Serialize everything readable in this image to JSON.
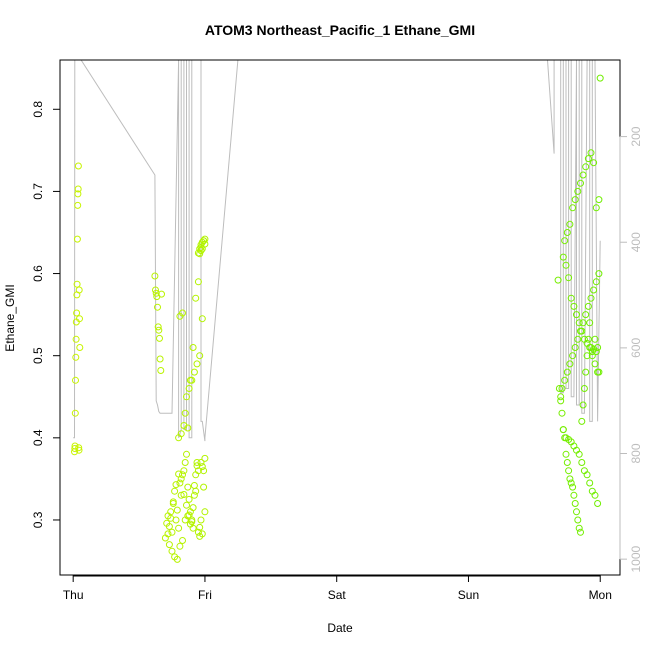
{
  "chart_data": {
    "type": "scatter",
    "title": "ATOM3 Northeast_Pacific_1 Ethane_GMI",
    "xlabel": "Date",
    "ylabel": "Ethane_GMI",
    "x_ticks": [
      "Thu",
      "Fri",
      "Sat",
      "Sun",
      "Mon"
    ],
    "x_tick_values": [
      0,
      1,
      2,
      3,
      4
    ],
    "xlim": [
      -0.1,
      4.15
    ],
    "y_ticks": [
      0.3,
      0.4,
      0.5,
      0.6,
      0.7,
      0.8
    ],
    "ylim": [
      0.233,
      0.86
    ],
    "y2_ticks": [
      200,
      400,
      600,
      800,
      1000
    ],
    "y2_label": "",
    "y2lim": [
      1030,
      55
    ],
    "y2_reversed": true,
    "grid": false,
    "point_color_low": "#c8f400",
    "point_color_high": "#70ee00",
    "line_color": "#bdbdbd",
    "series": [
      {
        "x": [
          0.01,
          0.012,
          0.014,
          0.016,
          0.018,
          0.02,
          0.022,
          0.024,
          0.026,
          0.028,
          0.03,
          0.032,
          0.034,
          0.036,
          0.038,
          0.04,
          0.042,
          0.044,
          0.046,
          0.048,
          0.05
        ],
        "y": [
          0.383,
          0.387,
          0.39,
          0.43,
          0.47,
          0.498,
          0.52,
          0.541,
          0.552,
          0.574,
          0.587,
          0.642,
          0.683,
          0.697,
          0.703,
          0.731,
          0.388,
          0.385,
          0.58,
          0.545,
          0.51
        ]
      },
      {
        "x": [
          0.62,
          0.625,
          0.63,
          0.635,
          0.64,
          0.645,
          0.65,
          0.655,
          0.66,
          0.665,
          0.67
        ],
        "y": [
          0.597,
          0.58,
          0.576,
          0.572,
          0.559,
          0.535,
          0.531,
          0.521,
          0.496,
          0.482,
          0.575
        ]
      },
      {
        "x": [
          0.7,
          0.71,
          0.72,
          0.73,
          0.74,
          0.75,
          0.76,
          0.77,
          0.78,
          0.79,
          0.8,
          0.81,
          0.82,
          0.83,
          0.84,
          0.85,
          0.86,
          0.87,
          0.88,
          0.89,
          0.9,
          0.91,
          0.92,
          0.93,
          0.94,
          0.95,
          0.96,
          0.97,
          0.98,
          0.99,
          1.0,
          0.72,
          0.74,
          0.76,
          0.78,
          0.8,
          0.82,
          0.84,
          0.86,
          0.88,
          0.9,
          0.92,
          0.94,
          0.96,
          0.98,
          1.0,
          0.73,
          0.75,
          0.77,
          0.79,
          0.81,
          0.83,
          0.85,
          0.87,
          0.89,
          0.91,
          0.93,
          0.95,
          0.97,
          0.99,
          0.8,
          0.82,
          0.84,
          0.86,
          0.88,
          0.9,
          0.92,
          0.94,
          0.96,
          0.98,
          0.81,
          0.83,
          0.85,
          0.87,
          0.89,
          0.91,
          0.93,
          0.95,
          0.97,
          0.99
        ],
        "y": [
          0.278,
          0.296,
          0.305,
          0.292,
          0.31,
          0.285,
          0.32,
          0.335,
          0.3,
          0.312,
          0.29,
          0.345,
          0.33,
          0.355,
          0.36,
          0.37,
          0.38,
          0.34,
          0.325,
          0.295,
          0.3,
          0.315,
          0.33,
          0.355,
          0.37,
          0.285,
          0.28,
          0.3,
          0.365,
          0.36,
          0.375,
          0.283,
          0.302,
          0.322,
          0.343,
          0.356,
          0.35,
          0.331,
          0.318,
          0.306,
          0.298,
          0.342,
          0.366,
          0.291,
          0.283,
          0.31,
          0.27,
          0.262,
          0.255,
          0.252,
          0.268,
          0.275,
          0.3,
          0.305,
          0.31,
          0.29,
          0.335,
          0.36,
          0.37,
          0.34,
          0.4,
          0.405,
          0.415,
          0.45,
          0.46,
          0.47,
          0.48,
          0.49,
          0.5,
          0.545,
          0.548,
          0.552,
          0.43,
          0.412,
          0.47,
          0.51,
          0.57,
          0.59,
          0.632,
          0.64
        ]
      },
      {
        "x": [
          0.95,
          0.96,
          0.97,
          0.98,
          0.99,
          1.0,
          0.96,
          0.98,
          1.0,
          0.97
        ],
        "y": [
          0.625,
          0.63,
          0.635,
          0.638,
          0.64,
          0.642,
          0.624,
          0.63,
          0.636,
          0.628
        ]
      },
      {
        "x": [
          3.68,
          3.69,
          3.7,
          3.71,
          3.72,
          3.73,
          3.74,
          3.75,
          3.76,
          3.77,
          3.78,
          3.79,
          3.8,
          3.81,
          3.82,
          3.83,
          3.84,
          3.85,
          3.86,
          3.87,
          3.88,
          3.89,
          3.9,
          3.91,
          3.92,
          3.93,
          3.94,
          3.95,
          3.96,
          3.97,
          3.98,
          3.99,
          4.0,
          3.7,
          3.72,
          3.74,
          3.76,
          3.78,
          3.8,
          3.82,
          3.84,
          3.86,
          3.88,
          3.9,
          3.92,
          3.94,
          3.96,
          3.98,
          3.71,
          3.73,
          3.75,
          3.77,
          3.79,
          3.81,
          3.83,
          3.85,
          3.87,
          3.89,
          3.91,
          3.93,
          3.95,
          3.97,
          3.99,
          3.72,
          3.74,
          3.76,
          3.78,
          3.8,
          3.82,
          3.84,
          3.86,
          3.88,
          3.9,
          3.92,
          3.94,
          3.96,
          3.98,
          3.73,
          3.75,
          3.77,
          3.79,
          3.81,
          3.83,
          3.85,
          3.87,
          3.89,
          3.91,
          3.93,
          3.95,
          3.97,
          3.99
        ],
        "y": [
          0.592,
          0.46,
          0.45,
          0.43,
          0.41,
          0.4,
          0.38,
          0.37,
          0.36,
          0.35,
          0.345,
          0.34,
          0.33,
          0.32,
          0.31,
          0.3,
          0.29,
          0.285,
          0.42,
          0.44,
          0.46,
          0.48,
          0.5,
          0.52,
          0.54,
          0.51,
          0.5,
          0.508,
          0.52,
          0.505,
          0.51,
          0.48,
          0.838,
          0.445,
          0.41,
          0.4,
          0.398,
          0.395,
          0.39,
          0.385,
          0.38,
          0.37,
          0.36,
          0.355,
          0.345,
          0.335,
          0.33,
          0.32,
          0.46,
          0.47,
          0.48,
          0.49,
          0.5,
          0.51,
          0.52,
          0.53,
          0.54,
          0.55,
          0.56,
          0.57,
          0.58,
          0.59,
          0.6,
          0.62,
          0.61,
          0.595,
          0.57,
          0.56,
          0.55,
          0.54,
          0.53,
          0.52,
          0.515,
          0.51,
          0.505,
          0.49,
          0.48,
          0.64,
          0.65,
          0.66,
          0.68,
          0.69,
          0.7,
          0.71,
          0.72,
          0.73,
          0.74,
          0.747,
          0.735,
          0.68,
          0.69
        ]
      }
    ],
    "line_series": {
      "x": [
        0.0,
        0.01,
        0.012,
        0.015,
        0.02,
        0.025,
        0.04,
        0.045,
        0.05,
        0.06,
        0.62,
        0.63,
        0.64,
        0.65,
        0.66,
        0.7,
        0.75,
        0.8,
        0.8,
        0.82,
        0.82,
        0.83,
        0.84,
        0.84,
        0.86,
        0.86,
        0.88,
        0.88,
        0.9,
        0.9,
        0.92,
        0.95,
        0.97,
        0.97,
        0.98,
        1.0,
        1.0,
        1.0,
        1.25,
        2.0,
        3.0,
        3.6,
        3.65,
        3.65,
        3.7,
        3.7,
        3.72,
        3.72,
        3.74,
        3.74,
        3.76,
        3.76,
        3.78,
        3.78,
        3.8,
        3.82,
        3.82,
        3.84,
        3.84,
        3.86,
        3.86,
        3.88,
        3.9,
        3.92,
        3.92,
        3.94,
        3.94,
        3.96,
        3.98,
        4.0
      ],
      "y": [
        0.4,
        0.4,
        0.86,
        0.86,
        0.86,
        0.86,
        0.86,
        0.86,
        0.86,
        0.86,
        0.72,
        0.445,
        0.44,
        0.432,
        0.43,
        0.43,
        0.43,
        0.86,
        0.4,
        0.41,
        0.86,
        0.86,
        0.86,
        0.41,
        0.41,
        0.86,
        0.86,
        0.4,
        0.4,
        0.86,
        0.86,
        0.86,
        0.86,
        0.42,
        0.42,
        0.396,
        0.4,
        0.4,
        0.86,
        0.86,
        0.86,
        0.86,
        0.746,
        0.86,
        0.86,
        0.455,
        0.455,
        0.86,
        0.86,
        0.46,
        0.46,
        0.86,
        0.86,
        0.45,
        0.45,
        0.86,
        0.44,
        0.44,
        0.86,
        0.86,
        0.43,
        0.43,
        0.86,
        0.86,
        0.42,
        0.42,
        0.86,
        0.86,
        0.42,
        0.64
      ]
    }
  }
}
